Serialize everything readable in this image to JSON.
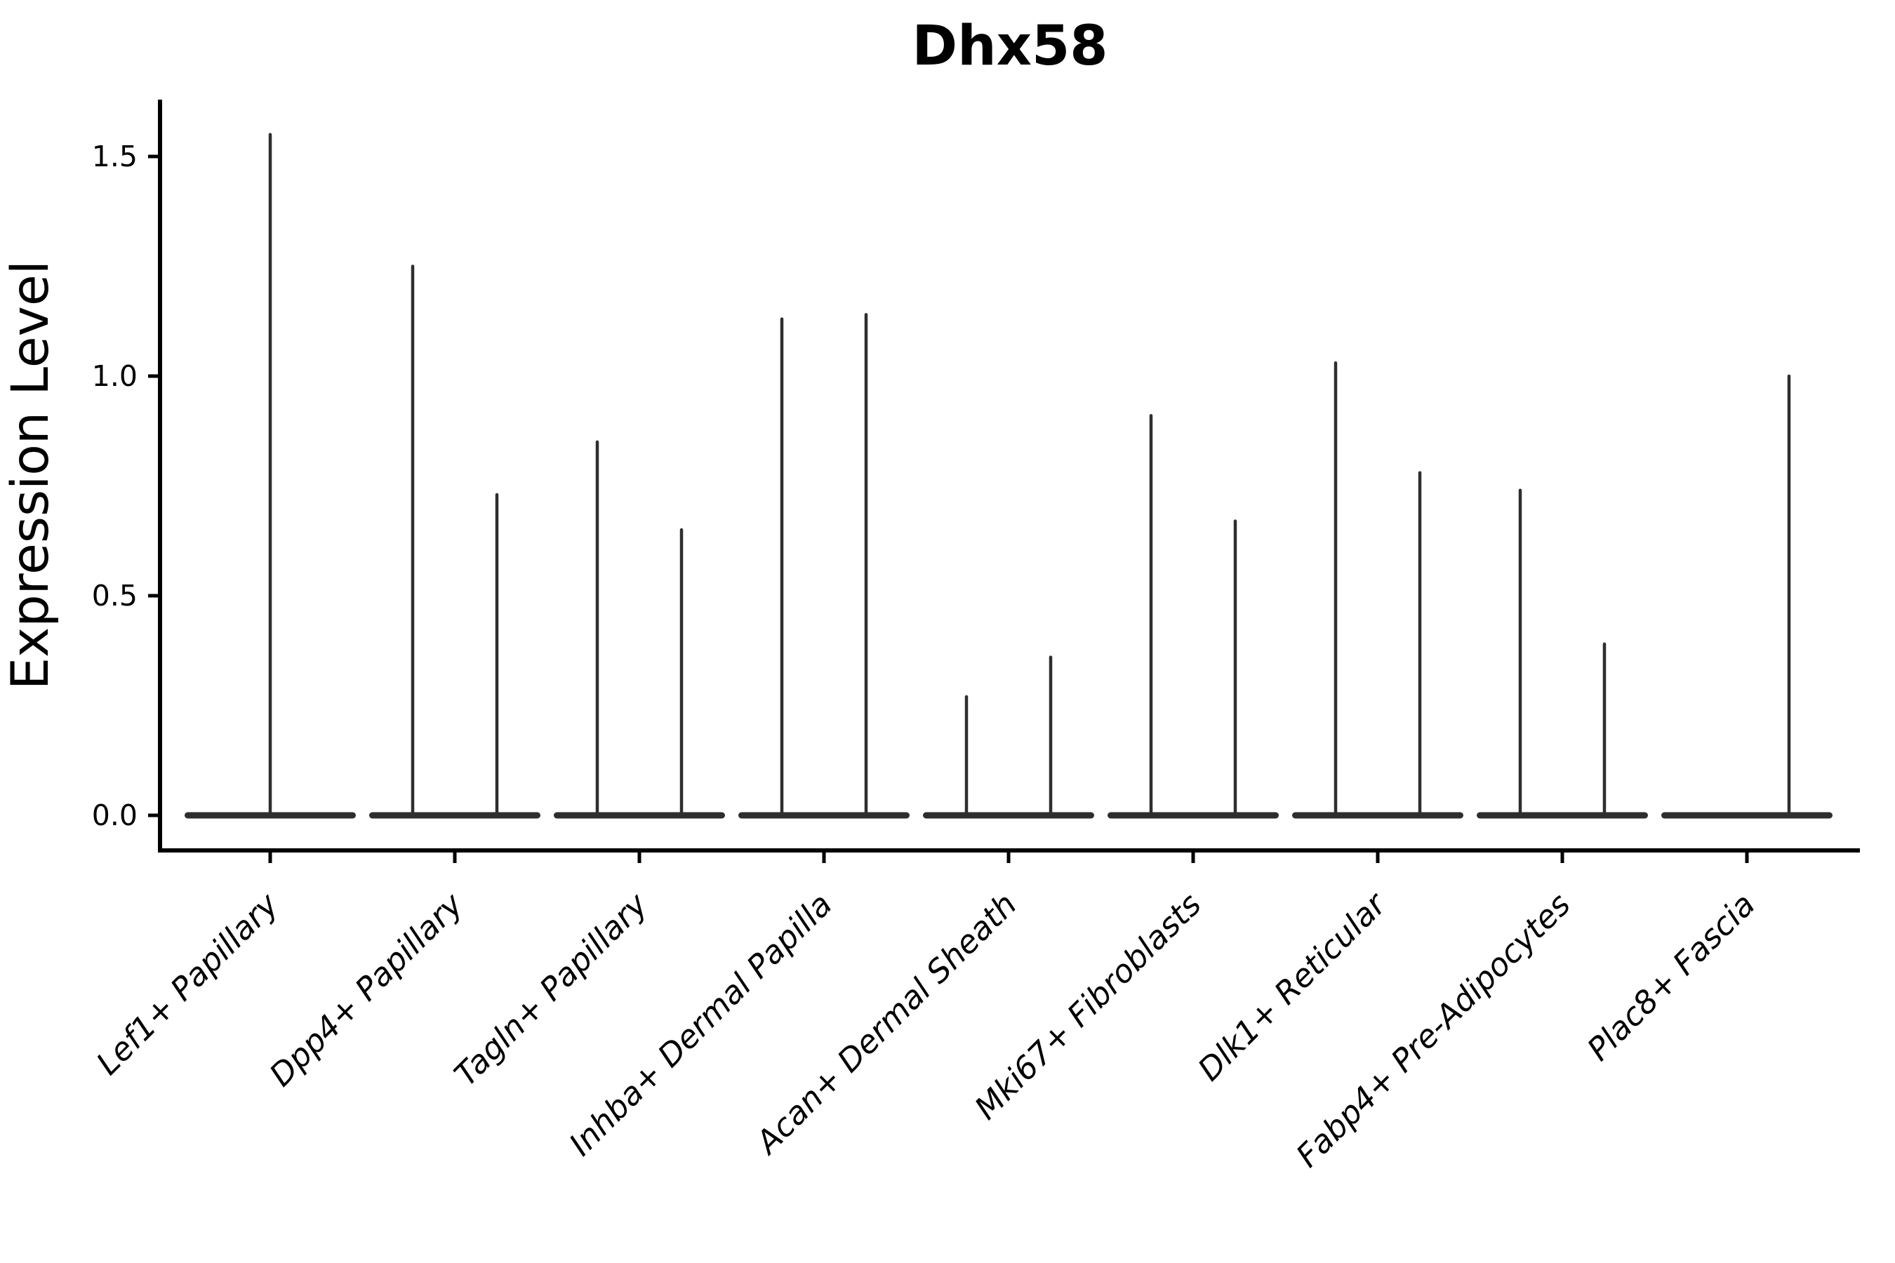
{
  "chart_data": {
    "type": "violin",
    "title": "Dhx58",
    "xlabel": "",
    "ylabel": "Expression Level",
    "yticks": [
      "0.0",
      "0.5",
      "1.0",
      "1.5"
    ],
    "ylim": [
      -0.07,
      1.63
    ],
    "grid": false,
    "legend": "none",
    "description": "Per cell-type violin plots collapsed at 0 with thin density spikes reaching the maximum expression value; two half-width violins per category where two spikes are shown",
    "categories": [
      {
        "label": "Lef1+ Papillary",
        "spikes": [
          {
            "pos": "center",
            "max": 1.55
          }
        ]
      },
      {
        "label": "Dpp4+ Papillary",
        "spikes": [
          {
            "pos": "left",
            "max": 1.25
          },
          {
            "pos": "right",
            "max": 0.73
          }
        ]
      },
      {
        "label": "Tagln+ Papillary",
        "spikes": [
          {
            "pos": "left",
            "max": 0.85
          },
          {
            "pos": "right",
            "max": 0.65
          }
        ]
      },
      {
        "label": "Inhba+ Dermal Papilla",
        "spikes": [
          {
            "pos": "left",
            "max": 1.13
          },
          {
            "pos": "right",
            "max": 1.14
          }
        ]
      },
      {
        "label": "Acan+ Dermal Sheath",
        "spikes": [
          {
            "pos": "left",
            "max": 0.27
          },
          {
            "pos": "right",
            "max": 0.36
          }
        ]
      },
      {
        "label": "Mki67+ Fibroblasts",
        "spikes": [
          {
            "pos": "left",
            "max": 0.91
          },
          {
            "pos": "right",
            "max": 0.67
          }
        ]
      },
      {
        "label": "Dlk1+ Reticular",
        "spikes": [
          {
            "pos": "left",
            "max": 1.03
          },
          {
            "pos": "right",
            "max": 0.78
          }
        ]
      },
      {
        "label": "Fabp4+ Pre-Adipocytes",
        "spikes": [
          {
            "pos": "left",
            "max": 0.74
          },
          {
            "pos": "right",
            "max": 0.39
          }
        ]
      },
      {
        "label": "Plac8+ Fascia",
        "spikes": [
          {
            "pos": "right",
            "max": 1.0
          }
        ]
      }
    ],
    "colors": {
      "ink": "#000000",
      "violin": "#2e2e2e"
    }
  }
}
